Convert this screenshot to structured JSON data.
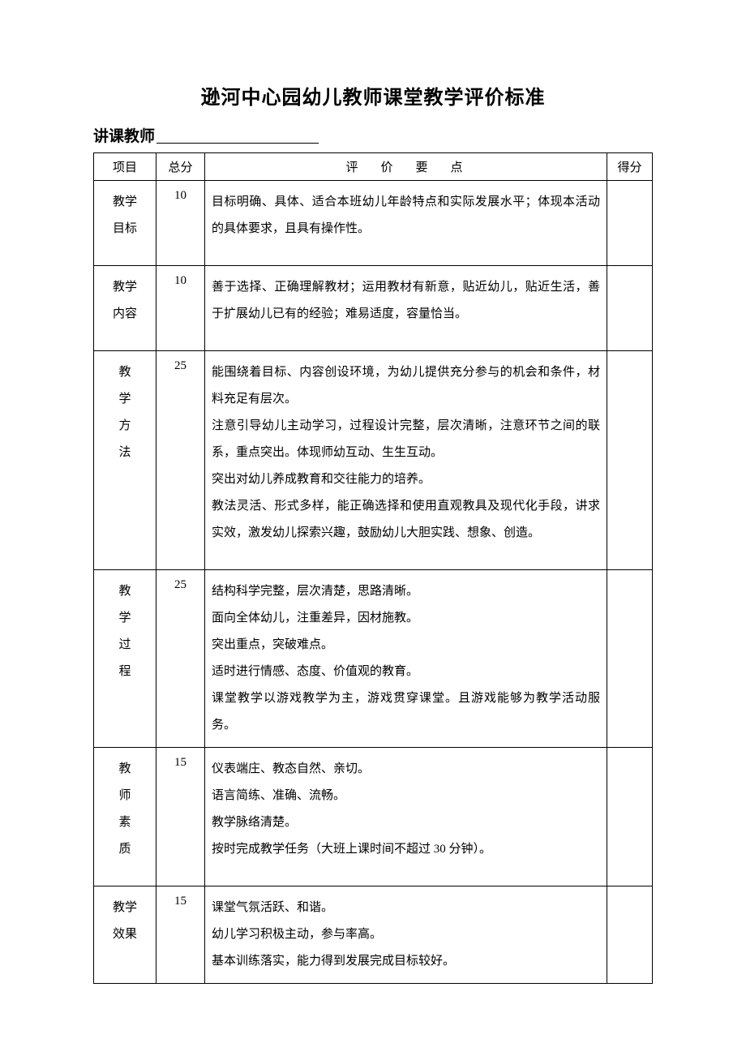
{
  "title": "逊河中心园幼儿教师课堂教学评价标准",
  "subtitle_label": "讲课教师",
  "headers": {
    "item": "项目",
    "total": "总分",
    "criteria": "评价要点",
    "score": "得分"
  },
  "rows": [
    {
      "item_lines": [
        "教学",
        "目标"
      ],
      "total": "10",
      "criteria_lines": [
        "目标明确、具体、适合本班幼儿年龄特点和实际发展水平；体现本活动的具体要求，且具有操作性。"
      ]
    },
    {
      "item_lines": [
        "教学",
        "内容"
      ],
      "total": "10",
      "criteria_lines": [
        "善于选择、正确理解教材；运用教材有新意，贴近幼儿，贴近生活，善于扩展幼儿已有的经验；难易适度，容量恰当。"
      ]
    },
    {
      "item_lines": [
        "教",
        "学",
        "方",
        "法"
      ],
      "total": "25",
      "criteria_lines": [
        "能围绕着目标、内容创设环境，为幼儿提供充分参与的机会和条件，材料充足有层次。",
        "注意引导幼儿主动学习，过程设计完整，层次清晰，注意环节之间的联系，重点突出。体现师幼互动、生生互动。",
        "突出对幼儿养成教育和交往能力的培养。",
        "教法灵活、形式多样，能正确选择和使用直观教具及现代化手段，讲求实效，激发幼儿探索兴趣，鼓励幼儿大胆实践、想象、创造。"
      ]
    },
    {
      "item_lines": [
        "教",
        "学",
        "过",
        "程"
      ],
      "total": "25",
      "criteria_lines": [
        "结构科学完整，层次清楚，思路清晰。",
        "面向全体幼儿，注重差异，因材施教。",
        "突出重点，突破难点。",
        "适时进行情感、态度、价值观的教育。",
        "课堂教学以游戏教学为主，游戏贯穿课堂。且游戏能够为教学活动服务。"
      ],
      "tight": true
    },
    {
      "item_lines": [
        "教",
        "师",
        "素",
        "质"
      ],
      "total": "15",
      "criteria_lines": [
        "仪表端庄、教态自然、亲切。",
        "语言简练、准确、流畅。",
        "教学脉络清楚。",
        "按时完成教学任务（大班上课时间不超过 30 分钟）。"
      ]
    },
    {
      "item_lines": [
        "教学",
        "效果"
      ],
      "total": "15",
      "criteria_lines": [
        "课堂气氛活跃、和谐。",
        "幼儿学习积极主动，参与率高。",
        "基本训练落实，能力得到发展完成目标较好。"
      ],
      "tight": true
    }
  ]
}
